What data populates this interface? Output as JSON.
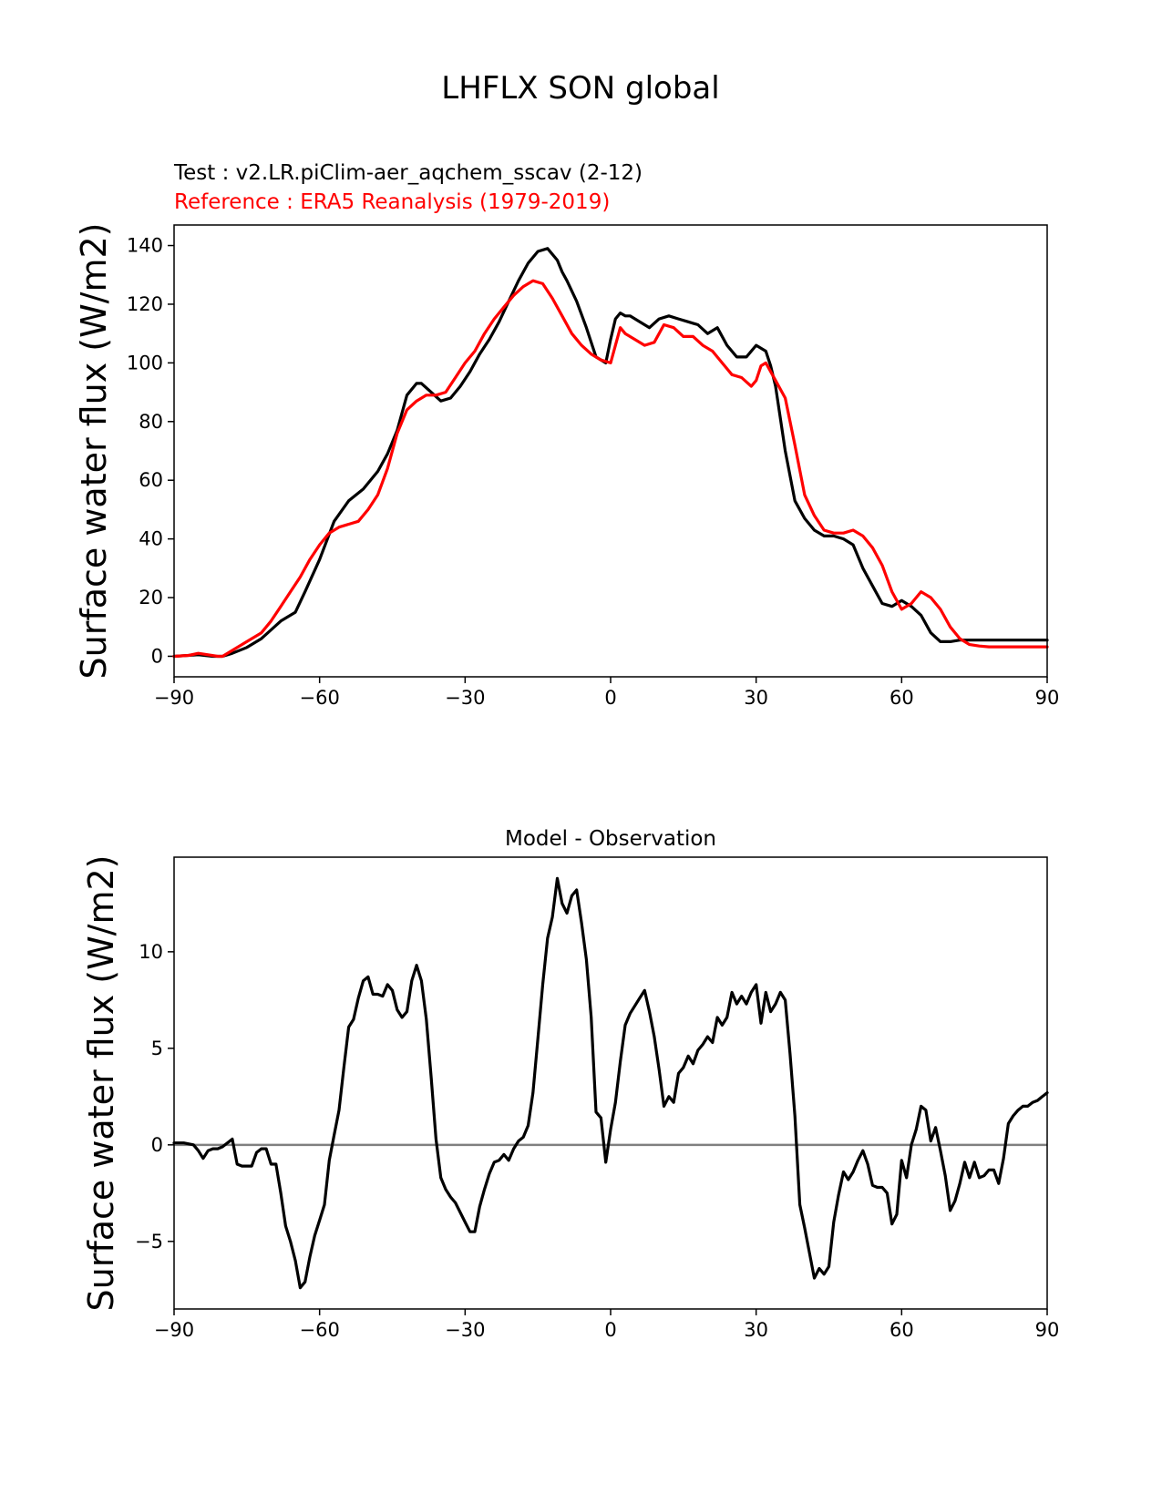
{
  "figure": {
    "title": "LHFLX SON global"
  },
  "chart_data": [
    {
      "type": "line",
      "test_label": "Test : v2.LR.piClim-aer_aqchem_sscav (2-12)",
      "reference_label": "Reference : ERA5 Reanalysis (1979-2019)",
      "xlabel": "",
      "ylabel": "Surface water flux (W/m2)",
      "xlim": [
        -90,
        90
      ],
      "ylim": [
        -7,
        147
      ],
      "xticks": [
        -90,
        -60,
        -30,
        0,
        30,
        60,
        90
      ],
      "xtick_labels": [
        "−90",
        "−60",
        "−30",
        "0",
        "30",
        "60",
        "90"
      ],
      "yticks": [
        0,
        20,
        40,
        60,
        80,
        100,
        120,
        140
      ],
      "ytick_labels": [
        "0",
        "20",
        "40",
        "60",
        "80",
        "100",
        "120",
        "140"
      ],
      "series": [
        {
          "name": "Test",
          "color": "#000000",
          "x": [
            -90,
            -85,
            -82,
            -80,
            -78,
            -75,
            -72,
            -70,
            -68,
            -65,
            -63,
            -60,
            -57,
            -54,
            -51,
            -48,
            -46,
            -44,
            -42,
            -40,
            -39,
            -37,
            -35,
            -33,
            -31,
            -29,
            -27,
            -25,
            -23,
            -21,
            -19,
            -17,
            -15,
            -13,
            -11,
            -10,
            -9,
            -7,
            -5,
            -3,
            -1,
            0,
            1,
            2,
            3,
            4,
            6,
            8,
            10,
            12,
            14,
            16,
            18,
            20,
            22,
            24,
            26,
            28,
            30,
            32,
            33,
            34,
            36,
            38,
            40,
            42,
            44,
            46,
            48,
            50,
            52,
            54,
            56,
            58,
            60,
            62,
            64,
            66,
            68,
            70,
            72,
            74,
            76,
            78,
            80,
            82,
            84,
            86,
            88,
            90
          ],
          "y": [
            0,
            0.5,
            0,
            0,
            1,
            3,
            6,
            9,
            12,
            15,
            22,
            33,
            46,
            53,
            57,
            63,
            69,
            77,
            89,
            93,
            93,
            90,
            87,
            88,
            92,
            97,
            103,
            108,
            114,
            121,
            128,
            134,
            138,
            139,
            135,
            131,
            128,
            121,
            112,
            102,
            100,
            108,
            115,
            117,
            116,
            116,
            114,
            112,
            115,
            116,
            115,
            114,
            113,
            110,
            112,
            106,
            102,
            102,
            106,
            104,
            99,
            92,
            70,
            53,
            47,
            43,
            41,
            41,
            40,
            38,
            30,
            24,
            18,
            17,
            19,
            17,
            14,
            8,
            5,
            5,
            5.5,
            5.5,
            5.5,
            5.5,
            5.5,
            5.5,
            5.5,
            5.5,
            5.5,
            5.5
          ]
        },
        {
          "name": "Reference",
          "color": "#ff0000",
          "x": [
            -90,
            -87,
            -85,
            -83,
            -81,
            -80,
            -78,
            -75,
            -72,
            -70,
            -68,
            -66,
            -64,
            -62,
            -60,
            -58,
            -56,
            -54,
            -52,
            -50,
            -48,
            -46,
            -44,
            -42,
            -40,
            -38,
            -36,
            -34,
            -32,
            -30,
            -28,
            -26,
            -24,
            -22,
            -20,
            -18,
            -16,
            -14,
            -12,
            -10,
            -8,
            -6,
            -4,
            -2,
            0,
            1,
            2,
            3,
            5,
            7,
            9,
            11,
            13,
            15,
            17,
            19,
            21,
            23,
            25,
            27,
            29,
            30,
            31,
            32,
            34,
            36,
            38,
            40,
            42,
            44,
            46,
            48,
            50,
            52,
            54,
            56,
            58,
            60,
            62,
            64,
            66,
            68,
            70,
            72,
            74,
            76,
            78,
            80,
            82,
            84,
            86,
            88,
            90
          ],
          "y": [
            0,
            0.3,
            1,
            0.5,
            0,
            0,
            2,
            5,
            8,
            12,
            17,
            22,
            27,
            33,
            38,
            42,
            44,
            45,
            46,
            50,
            55,
            64,
            76,
            84,
            87,
            89,
            89,
            90,
            95,
            100,
            104,
            110,
            115,
            119,
            123,
            126,
            128,
            127,
            122,
            116,
            110,
            106,
            103,
            101,
            100,
            106,
            112,
            110,
            108,
            106,
            107,
            113,
            112,
            109,
            109,
            106,
            104,
            100,
            96,
            95,
            92,
            94,
            99,
            100,
            94,
            88,
            72,
            55,
            48,
            43,
            42,
            42,
            43,
            41,
            37,
            31,
            22,
            16,
            18,
            22,
            20,
            16,
            10,
            6,
            4,
            3.5,
            3.2,
            3.2,
            3.2,
            3.2,
            3.2,
            3.2,
            3.2
          ]
        }
      ]
    },
    {
      "type": "line",
      "title": "Model - Observation",
      "xlabel": "",
      "ylabel": "Surface water flux (W/m2)",
      "xlim": [
        -90,
        90
      ],
      "ylim": [
        -8.5,
        14.9
      ],
      "xticks": [
        -90,
        -60,
        -30,
        0,
        30,
        60,
        90
      ],
      "xtick_labels": [
        "−90",
        "−60",
        "−30",
        "0",
        "30",
        "60",
        "90"
      ],
      "yticks": [
        -5,
        0,
        5,
        10
      ],
      "ytick_labels": [
        "−5",
        "0",
        "5",
        "10"
      ],
      "zero_line_color": "#808080",
      "series": [
        {
          "name": "Difference",
          "color": "#000000",
          "x": [
            -90,
            -88,
            -86,
            -85,
            -84,
            -83,
            -82,
            -81,
            -80,
            -79,
            -78,
            -77,
            -76,
            -75,
            -74,
            -73,
            -72,
            -71,
            -70,
            -69,
            -68,
            -67,
            -66,
            -65,
            -64,
            -63,
            -62,
            -61,
            -60,
            -59,
            -58,
            -57,
            -56,
            -55,
            -54,
            -53,
            -52,
            -51,
            -50,
            -49,
            -48,
            -47,
            -46,
            -45,
            -44,
            -43,
            -42,
            -41,
            -40,
            -39,
            -38,
            -37,
            -36,
            -35,
            -34,
            -33,
            -32,
            -31,
            -30,
            -29,
            -28,
            -27,
            -26,
            -25,
            -24,
            -23,
            -22,
            -21,
            -20,
            -19,
            -18,
            -17,
            -16,
            -15,
            -14,
            -13,
            -12,
            -11,
            -10,
            -9,
            -8,
            -7,
            -6,
            -5,
            -4,
            -3,
            -2,
            -1,
            0,
            1,
            2,
            3,
            4,
            5,
            6,
            7,
            8,
            9,
            10,
            11,
            12,
            13,
            14,
            15,
            16,
            17,
            18,
            19,
            20,
            21,
            22,
            23,
            24,
            25,
            26,
            27,
            28,
            29,
            30,
            31,
            32,
            33,
            34,
            35,
            36,
            37,
            38,
            39,
            40,
            41,
            42,
            43,
            44,
            45,
            46,
            47,
            48,
            49,
            50,
            51,
            52,
            53,
            54,
            55,
            56,
            57,
            58,
            59,
            60,
            61,
            62,
            63,
            64,
            65,
            66,
            67,
            68,
            69,
            70,
            71,
            72,
            73,
            74,
            75,
            76,
            77,
            78,
            79,
            80,
            81,
            82,
            83,
            84,
            85,
            86,
            87,
            88,
            89,
            90
          ],
          "y": [
            0.1,
            0.1,
            0,
            -0.3,
            -0.7,
            -0.3,
            -0.2,
            -0.2,
            -0.1,
            0.1,
            0.3,
            -1,
            -1.1,
            -1.1,
            -1.1,
            -0.4,
            -0.2,
            -0.2,
            -1,
            -1,
            -2.5,
            -4.2,
            -5,
            -6,
            -7.4,
            -7.1,
            -5.8,
            -4.7,
            -3.9,
            -3.1,
            -0.8,
            0.5,
            1.8,
            4,
            6.1,
            6.5,
            7.6,
            8.5,
            8.7,
            7.8,
            7.8,
            7.7,
            8.3,
            8,
            7,
            6.6,
            6.9,
            8.5,
            9.3,
            8.5,
            6.5,
            3.5,
            0.3,
            -1.7,
            -2.3,
            -2.7,
            -3,
            -3.5,
            -4,
            -4.5,
            -4.5,
            -3.2,
            -2.3,
            -1.5,
            -0.9,
            -0.8,
            -0.5,
            -0.8,
            -0.2,
            0.2,
            0.4,
            1,
            2.7,
            5.5,
            8.3,
            10.7,
            11.8,
            13.8,
            12.5,
            12,
            12.9,
            13.2,
            11.5,
            9.6,
            6.6,
            1.7,
            1.4,
            -0.9,
            0.8,
            2.2,
            4.3,
            6.2,
            6.8,
            7.2,
            7.6,
            8,
            6.9,
            5.6,
            3.9,
            2,
            2.5,
            2.2,
            3.7,
            4,
            4.6,
            4.2,
            4.9,
            5.2,
            5.6,
            5.3,
            6.6,
            6.2,
            6.6,
            7.9,
            7.3,
            7.7,
            7.3,
            7.9,
            8.3,
            6.3,
            7.9,
            6.9,
            7.3,
            7.9,
            7.5,
            4.7,
            1.5,
            -3.1,
            -4.3,
            -5.6,
            -6.9,
            -6.4,
            -6.7,
            -6.3,
            -4,
            -2.6,
            -1.4,
            -1.8,
            -1.4,
            -0.8,
            -0.3,
            -1,
            -2.1,
            -2.2,
            -2.2,
            -2.5,
            -4.1,
            -3.6,
            -0.8,
            -1.7,
            0,
            0.8,
            2,
            1.8,
            0.2,
            0.9,
            -0.3,
            -1.6,
            -3.4,
            -2.9,
            -2,
            -0.9,
            -1.7,
            -0.9,
            -1.7,
            -1.6,
            -1.3,
            -1.3,
            -2,
            -0.7,
            1.1,
            1.5,
            1.8,
            2,
            2,
            2.2,
            2.3,
            2.5,
            2.7
          ]
        }
      ]
    }
  ]
}
